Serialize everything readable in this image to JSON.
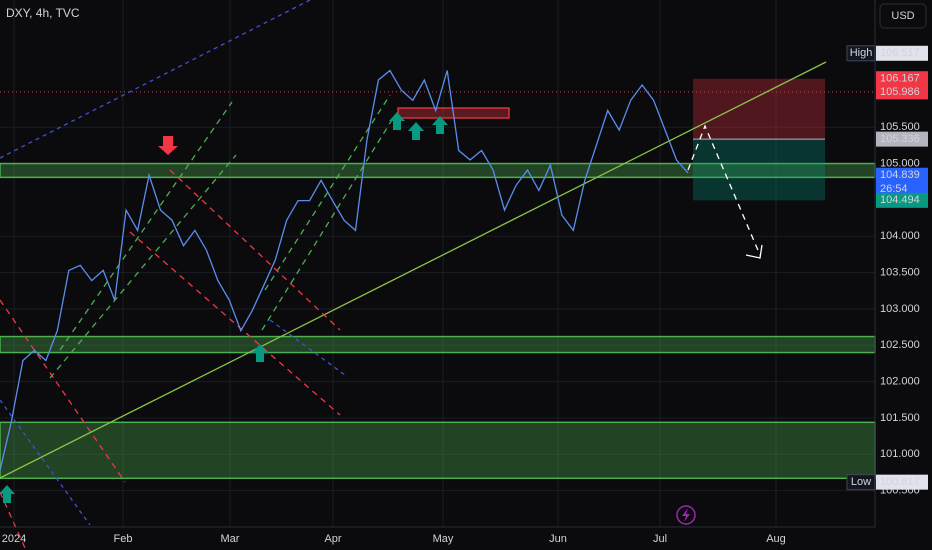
{
  "chart_data": {
    "type": "line",
    "title": "DXY, 4h, TVC",
    "currency": "USD",
    "xticks": [
      "2024",
      "Feb",
      "Mar",
      "Apr",
      "May",
      "Jun",
      "Jul",
      "Aug"
    ],
    "ylim": [
      100,
      107.25
    ],
    "yticks": [
      {
        "value": 100.5,
        "label": "100.500"
      },
      {
        "value": 101,
        "label": "101.000"
      },
      {
        "value": 101.5,
        "label": "101.500"
      },
      {
        "value": 102,
        "label": "102.000"
      },
      {
        "value": 102.5,
        "label": "102.500"
      },
      {
        "value": 103,
        "label": "103.000"
      },
      {
        "value": 103.5,
        "label": "103.500"
      },
      {
        "value": 104,
        "label": "104.000"
      },
      {
        "value": 105,
        "label": "105.000"
      },
      {
        "value": 105.5,
        "label": "105.500"
      }
    ],
    "grid": true,
    "series": [
      {
        "color": "#5b8def",
        "values": [
          100.78,
          101.46,
          102.29,
          102.43,
          102.29,
          102.7,
          103.53,
          103.6,
          103.39,
          103.53,
          103.12,
          104.36,
          104.08,
          104.84,
          104.36,
          104.22,
          103.87,
          104.08,
          103.81,
          103.39,
          103.12,
          102.7,
          102.98,
          103.32,
          103.67,
          104.22,
          104.49,
          104.49,
          104.77,
          104.49,
          104.22,
          104.08,
          105.32,
          106.15,
          106.28,
          106.01,
          105.87,
          106.15,
          105.73,
          106.28,
          105.18,
          105.05,
          105.18,
          104.91,
          104.36,
          104.7,
          104.91,
          104.63,
          104.98,
          104.29,
          104.08,
          104.77,
          105.25,
          105.73,
          105.46,
          105.87,
          106.08,
          105.87,
          105.46,
          105.05,
          104.87
        ]
      }
    ],
    "zone_color": "#4caf50",
    "zones": [
      {
        "low": 104.81,
        "high": 105.0
      },
      {
        "low": 102.4,
        "high": 102.62
      },
      {
        "low": 100.67,
        "high": 101.44
      }
    ],
    "price_badges": [
      {
        "name": "High",
        "value": 106.517,
        "color": "#e0e3eb"
      },
      {
        "value": 106.167,
        "color": "#f23645"
      },
      {
        "value": 105.986,
        "color": "#f23645"
      },
      {
        "value": 105.336,
        "color": "#b2b5be"
      },
      {
        "value": 104.839,
        "color": "#2962ff",
        "countdown": "26:54"
      },
      {
        "value": 104.494,
        "color": "#089981"
      },
      {
        "name": "Low",
        "value": 100.617,
        "color": "#e0e3eb"
      }
    ]
  }
}
